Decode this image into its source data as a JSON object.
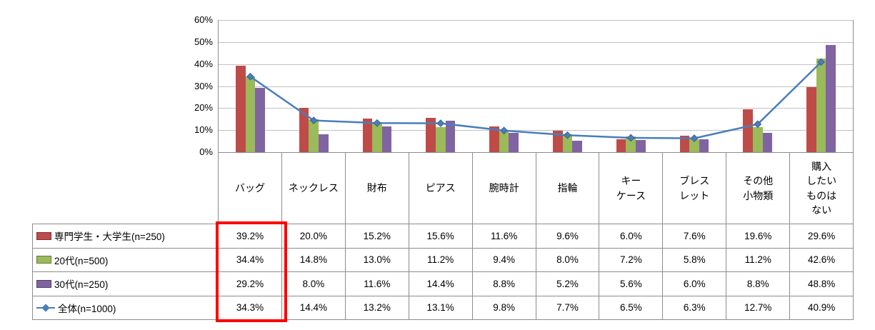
{
  "chart_data": {
    "type": "bar",
    "subtype": "grouped bars with overlay line and attached data table",
    "categories": [
      "バッグ",
      "ネックレス",
      "財布",
      "ピアス",
      "腕時計",
      "指輪",
      "キーケース",
      "ブレスレット",
      "その他小物類",
      "購入したいものはない"
    ],
    "category_labels_display": [
      "バッグ",
      "ネックレス",
      "財布",
      "ピアス",
      "腕時計",
      "指輪",
      "キー\nケース",
      "ブレス\nレット",
      "その他\n小物類",
      "購入\nしたい\nものは\nない"
    ],
    "ylim": [
      0,
      60
    ],
    "y_tick_labels": [
      "60%",
      "50%",
      "40%",
      "30%",
      "20%",
      "10%",
      "0%"
    ],
    "grid": true,
    "legend_position": "data-table-left",
    "series": [
      {
        "name": "専門学生・大学生(n=250)",
        "mark": "bar",
        "color": "#bf4b49",
        "values": [
          39.2,
          20.0,
          15.2,
          15.6,
          11.6,
          9.6,
          6.0,
          7.6,
          19.6,
          29.6
        ],
        "display": [
          "39.2%",
          "20.0%",
          "15.2%",
          "15.6%",
          "11.6%",
          "9.6%",
          "6.0%",
          "7.6%",
          "19.6%",
          "29.6%"
        ]
      },
      {
        "name": "20代(n=500)",
        "mark": "bar",
        "color": "#9bba59",
        "values": [
          34.4,
          14.8,
          13.0,
          11.2,
          9.4,
          8.0,
          7.2,
          5.8,
          11.2,
          42.6
        ],
        "display": [
          "34.4%",
          "14.8%",
          "13.0%",
          "11.2%",
          "9.4%",
          "8.0%",
          "7.2%",
          "5.8%",
          "11.2%",
          "42.6%"
        ]
      },
      {
        "name": "30代(n=250)",
        "mark": "bar",
        "color": "#8064a2",
        "values": [
          29.2,
          8.0,
          11.6,
          14.4,
          8.8,
          5.2,
          5.6,
          6.0,
          8.8,
          48.8
        ],
        "display": [
          "29.2%",
          "8.0%",
          "11.6%",
          "14.4%",
          "8.8%",
          "5.2%",
          "5.6%",
          "6.0%",
          "8.8%",
          "48.8%"
        ]
      },
      {
        "name": "全体(n=1000)",
        "mark": "line",
        "color": "#4a7ebb",
        "values": [
          34.3,
          14.4,
          13.2,
          13.1,
          9.8,
          7.7,
          6.5,
          6.3,
          12.7,
          40.9
        ],
        "display": [
          "34.3%",
          "14.4%",
          "13.2%",
          "13.1%",
          "9.8%",
          "7.7%",
          "6.5%",
          "6.3%",
          "12.7%",
          "40.9%"
        ]
      }
    ],
    "highlight": {
      "target": "バッグ column of data table",
      "color": "#ff0000"
    }
  }
}
